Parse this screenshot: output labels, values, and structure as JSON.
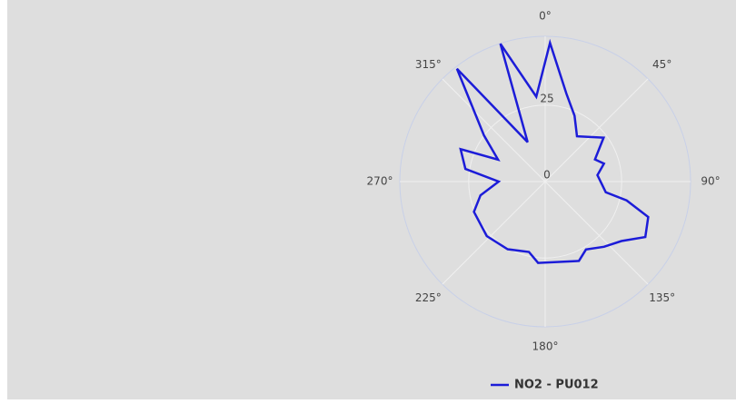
{
  "chart_data": {
    "type": "polar",
    "series": [
      {
        "name": "NO2 - PU012",
        "color": "#1c1cd8",
        "theta": [
          2,
          13.5,
          24,
          35,
          53,
          66,
          73,
          83,
          100,
          103,
          109,
          119,
          128,
          138,
          149,
          157,
          185,
          193,
          209,
          227,
          247,
          258,
          270,
          279,
          291,
          295,
          307,
          322,
          336,
          342,
          354
        ],
        "values": [
          45.4,
          29.6,
          23.6,
          18.1,
          23.9,
          17.8,
          20.1,
          17.2,
          20.1,
          27.3,
          35.6,
          37.4,
          31.6,
          28.7,
          25.9,
          28.2,
          26.7,
          23.6,
          25.3,
          26.1,
          25.3,
          21.6,
          15.2,
          26.4,
          29.6,
          17.0,
          25.0,
          46.8,
          14.1,
          47.4,
          27.9
        ]
      }
    ],
    "rlim": [
      0,
      47.5
    ],
    "rticks": [
      0,
      25
    ],
    "thetaticks": [
      {
        "value": 0,
        "label": "0°"
      },
      {
        "value": 45,
        "label": "45°"
      },
      {
        "value": 90,
        "label": "90°"
      },
      {
        "value": 135,
        "label": "135°"
      },
      {
        "value": 180,
        "label": "180°"
      },
      {
        "value": 225,
        "label": "225°"
      },
      {
        "value": 270,
        "label": "270°"
      },
      {
        "value": 315,
        "label": "315°"
      }
    ],
    "grid": true
  }
}
